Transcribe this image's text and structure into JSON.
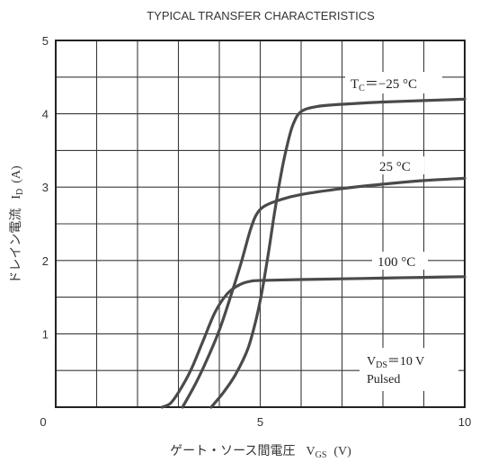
{
  "chart_data": {
    "type": "line",
    "title": "TYPICAL TRANSFER CHARACTERISTICS",
    "xlabel": {
      "text": "ゲート・ソース間電圧",
      "symbol": "V",
      "sub": "GS",
      "unit": "(V)"
    },
    "ylabel": {
      "text": "ドレイン電流",
      "symbol": "I",
      "sub": "D",
      "unit": "(A)"
    },
    "xlim": [
      0,
      10
    ],
    "ylim": [
      0,
      5
    ],
    "grid": true,
    "x_ticks": [
      {
        "value": 0,
        "label": "0"
      },
      {
        "value": 5,
        "label": "5"
      },
      {
        "value": 10,
        "label": "10"
      }
    ],
    "y_ticks": [
      {
        "value": 1,
        "label": "1"
      },
      {
        "value": 2,
        "label": "2"
      },
      {
        "value": 3,
        "label": "3"
      },
      {
        "value": 4,
        "label": "4"
      },
      {
        "value": 5,
        "label": "5"
      }
    ],
    "origin_label": "0",
    "series": [
      {
        "name": "−25 °C",
        "label_prefix": "T",
        "label_sub": "C",
        "label_rest": "＝−25 °C",
        "points": [
          [
            3.8,
            0.0
          ],
          [
            4.1,
            0.2
          ],
          [
            4.4,
            0.45
          ],
          [
            4.7,
            0.8
          ],
          [
            4.9,
            1.2
          ],
          [
            5.05,
            1.6
          ],
          [
            5.2,
            2.1
          ],
          [
            5.35,
            2.65
          ],
          [
            5.5,
            3.15
          ],
          [
            5.65,
            3.55
          ],
          [
            5.8,
            3.85
          ],
          [
            6.0,
            4.03
          ],
          [
            6.4,
            4.1
          ],
          [
            7.0,
            4.13
          ],
          [
            8.0,
            4.16
          ],
          [
            9.0,
            4.18
          ],
          [
            10.0,
            4.2
          ]
        ]
      },
      {
        "name": "25 °C",
        "label_text": "25 °C",
        "points": [
          [
            3.1,
            0.0
          ],
          [
            3.4,
            0.3
          ],
          [
            3.7,
            0.65
          ],
          [
            4.0,
            1.05
          ],
          [
            4.3,
            1.55
          ],
          [
            4.55,
            2.0
          ],
          [
            4.75,
            2.4
          ],
          [
            4.9,
            2.62
          ],
          [
            5.1,
            2.74
          ],
          [
            5.5,
            2.83
          ],
          [
            6.0,
            2.9
          ],
          [
            7.0,
            2.98
          ],
          [
            8.0,
            3.04
          ],
          [
            9.0,
            3.09
          ],
          [
            10.0,
            3.12
          ]
        ]
      },
      {
        "name": "100 °C",
        "label_text": "100 °C",
        "points": [
          [
            2.6,
            0.0
          ],
          [
            2.8,
            0.05
          ],
          [
            3.0,
            0.2
          ],
          [
            3.3,
            0.5
          ],
          [
            3.6,
            0.9
          ],
          [
            3.9,
            1.3
          ],
          [
            4.2,
            1.55
          ],
          [
            4.5,
            1.67
          ],
          [
            4.8,
            1.72
          ],
          [
            5.2,
            1.73
          ],
          [
            6.0,
            1.74
          ],
          [
            7.0,
            1.75
          ],
          [
            8.0,
            1.76
          ],
          [
            9.0,
            1.77
          ],
          [
            10.0,
            1.78
          ]
        ]
      }
    ],
    "annotation": {
      "line1_symbol": "V",
      "line1_sub": "DS",
      "line1_rest": "＝10 V",
      "line2": "Pulsed"
    },
    "line_color": "#4a4a4a",
    "grid_color": "#3a3a3a"
  }
}
